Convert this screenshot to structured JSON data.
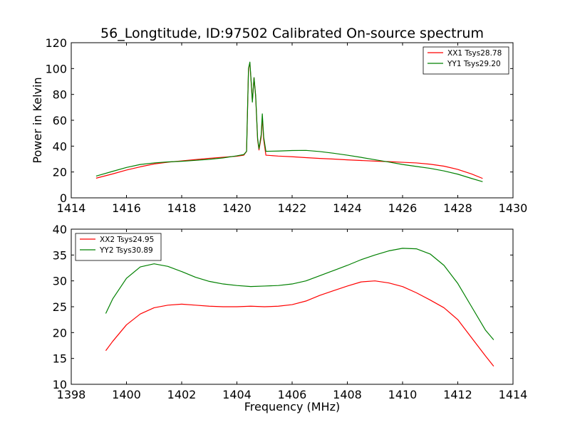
{
  "chart_data": [
    {
      "type": "line",
      "title": "56_Longtitude, ID:97502 Calibrated On-source spectrum",
      "xlabel": "",
      "ylabel": "Power in Kelvin",
      "xlim": [
        1414,
        1430
      ],
      "ylim": [
        0,
        120
      ],
      "xticks": [
        1414,
        1416,
        1418,
        1420,
        1422,
        1424,
        1426,
        1428,
        1430
      ],
      "yticks": [
        0,
        20,
        40,
        60,
        80,
        100,
        120
      ],
      "grid": false,
      "legend_position": "top-right",
      "series": [
        {
          "name": "XX1 Tsys28.78",
          "color": "#ff0000",
          "points": [
            [
              1414.9,
              15.2
            ],
            [
              1415.5,
              18.5
            ],
            [
              1416,
              21.5
            ],
            [
              1416.5,
              24
            ],
            [
              1417,
              26.2
            ],
            [
              1417.5,
              27.6
            ],
            [
              1418,
              28.6
            ],
            [
              1418.5,
              29.6
            ],
            [
              1419,
              30.6
            ],
            [
              1419.5,
              31.4
            ],
            [
              1420,
              32.2
            ],
            [
              1420.25,
              33.0
            ],
            [
              1420.35,
              36
            ],
            [
              1420.42,
              100
            ],
            [
              1420.47,
              104
            ],
            [
              1420.52,
              88
            ],
            [
              1420.56,
              75
            ],
            [
              1420.62,
              93
            ],
            [
              1420.68,
              78
            ],
            [
              1420.75,
              45
            ],
            [
              1420.8,
              37
            ],
            [
              1420.88,
              47
            ],
            [
              1420.92,
              62
            ],
            [
              1420.97,
              45
            ],
            [
              1421.05,
              33
            ],
            [
              1421.5,
              32.3
            ],
            [
              1422,
              31.8
            ],
            [
              1422.5,
              31.1
            ],
            [
              1423,
              30.5
            ],
            [
              1423.5,
              30
            ],
            [
              1424,
              29.4
            ],
            [
              1424.5,
              28.9
            ],
            [
              1425,
              28.4
            ],
            [
              1425.5,
              28
            ],
            [
              1426,
              27.5
            ],
            [
              1426.5,
              27
            ],
            [
              1427,
              26
            ],
            [
              1427.5,
              24.5
            ],
            [
              1428,
              22
            ],
            [
              1428.5,
              18.5
            ],
            [
              1428.9,
              15
            ]
          ]
        },
        {
          "name": "YY1 Tsys29.20",
          "color": "#008000",
          "points": [
            [
              1414.9,
              16.8
            ],
            [
              1415.5,
              20.5
            ],
            [
              1416,
              23.5
            ],
            [
              1416.5,
              25.8
            ],
            [
              1417,
              27
            ],
            [
              1417.5,
              27.8
            ],
            [
              1418,
              28.3
            ],
            [
              1418.5,
              29
            ],
            [
              1419,
              29.8
            ],
            [
              1419.5,
              30.9
            ],
            [
              1420,
              32.5
            ],
            [
              1420.25,
              33.5
            ],
            [
              1420.35,
              36
            ],
            [
              1420.42,
              100
            ],
            [
              1420.47,
              105
            ],
            [
              1420.52,
              89
            ],
            [
              1420.56,
              74
            ],
            [
              1420.62,
              93
            ],
            [
              1420.68,
              79
            ],
            [
              1420.75,
              46
            ],
            [
              1420.8,
              38
            ],
            [
              1420.88,
              49
            ],
            [
              1420.92,
              65
            ],
            [
              1420.97,
              47
            ],
            [
              1421.05,
              36
            ],
            [
              1421.5,
              36.2
            ],
            [
              1422,
              36.6
            ],
            [
              1422.5,
              36.7
            ],
            [
              1423,
              35.8
            ],
            [
              1423.5,
              34.5
            ],
            [
              1424,
              33
            ],
            [
              1424.5,
              31.3
            ],
            [
              1425,
              29.5
            ],
            [
              1425.5,
              27.7
            ],
            [
              1426,
              25.8
            ],
            [
              1426.5,
              24.3
            ],
            [
              1427,
              22.8
            ],
            [
              1427.5,
              20.8
            ],
            [
              1428,
              18.3
            ],
            [
              1428.5,
              15
            ],
            [
              1428.9,
              12.5
            ]
          ]
        }
      ]
    },
    {
      "type": "line",
      "title": "",
      "xlabel": "Frequency (MHz)",
      "ylabel": "",
      "xlim": [
        1398,
        1414
      ],
      "ylim": [
        10,
        40
      ],
      "xticks": [
        1398,
        1400,
        1402,
        1404,
        1406,
        1408,
        1410,
        1412,
        1414
      ],
      "yticks": [
        10,
        15,
        20,
        25,
        30,
        35,
        40
      ],
      "grid": false,
      "legend_position": "top-left",
      "series": [
        {
          "name": "XX2 Tsys24.95",
          "color": "#ff0000",
          "points": [
            [
              1399.25,
              16.5
            ],
            [
              1399.5,
              18.3
            ],
            [
              1400,
              21.5
            ],
            [
              1400.5,
              23.6
            ],
            [
              1401,
              24.8
            ],
            [
              1401.5,
              25.3
            ],
            [
              1402,
              25.5
            ],
            [
              1402.5,
              25.3
            ],
            [
              1403,
              25.1
            ],
            [
              1403.5,
              25.0
            ],
            [
              1404,
              25.0
            ],
            [
              1404.5,
              25.1
            ],
            [
              1405,
              25.0
            ],
            [
              1405.5,
              25.1
            ],
            [
              1406,
              25.4
            ],
            [
              1406.5,
              26.1
            ],
            [
              1407,
              27.2
            ],
            [
              1407.5,
              28.1
            ],
            [
              1408,
              29.0
            ],
            [
              1408.5,
              29.8
            ],
            [
              1409,
              30.0
            ],
            [
              1409.5,
              29.6
            ],
            [
              1410,
              28.9
            ],
            [
              1410.5,
              27.7
            ],
            [
              1411,
              26.3
            ],
            [
              1411.5,
              24.8
            ],
            [
              1412,
              22.5
            ],
            [
              1412.5,
              19.0
            ],
            [
              1413,
              15.5
            ],
            [
              1413.3,
              13.5
            ]
          ]
        },
        {
          "name": "YY2 Tsys30.89",
          "color": "#008000",
          "points": [
            [
              1399.25,
              23.7
            ],
            [
              1399.5,
              26.5
            ],
            [
              1400,
              30.5
            ],
            [
              1400.5,
              32.7
            ],
            [
              1401,
              33.3
            ],
            [
              1401.5,
              32.8
            ],
            [
              1402,
              31.8
            ],
            [
              1402.5,
              30.7
            ],
            [
              1403,
              29.9
            ],
            [
              1403.5,
              29.4
            ],
            [
              1404,
              29.1
            ],
            [
              1404.5,
              28.9
            ],
            [
              1405,
              29.0
            ],
            [
              1405.5,
              29.1
            ],
            [
              1406,
              29.4
            ],
            [
              1406.5,
              30.0
            ],
            [
              1407,
              31.0
            ],
            [
              1407.5,
              32.0
            ],
            [
              1408,
              33.0
            ],
            [
              1408.5,
              34.1
            ],
            [
              1409,
              35.0
            ],
            [
              1409.5,
              35.8
            ],
            [
              1410,
              36.3
            ],
            [
              1410.5,
              36.2
            ],
            [
              1411,
              35.2
            ],
            [
              1411.5,
              33.0
            ],
            [
              1412,
              29.5
            ],
            [
              1412.5,
              25.0
            ],
            [
              1413,
              20.5
            ],
            [
              1413.3,
              18.6
            ]
          ]
        }
      ]
    }
  ]
}
